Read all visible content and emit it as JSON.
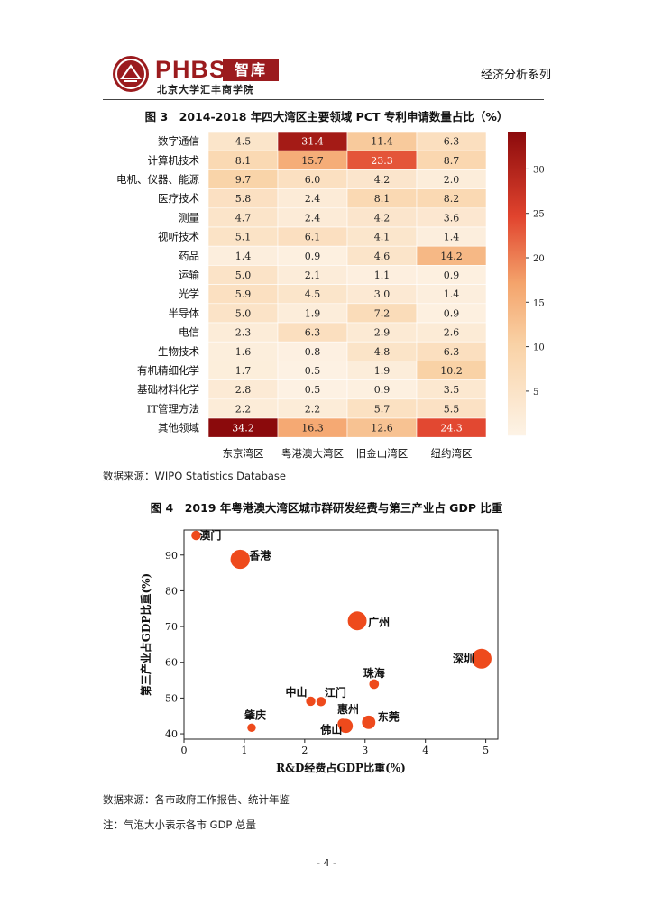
{
  "header": {
    "logo_main": "PHBS",
    "logo_badge": "智库",
    "logo_sub": "北京大学汇丰商学院",
    "series": "经济分析系列"
  },
  "figure3": {
    "title": "图 3　2014-2018 年四大湾区主要领域 PCT 专利申请数量占比（%）",
    "source": "数据来源：WIPO Statistics Database",
    "chart_data": {
      "type": "heatmap",
      "title": "2014-2018 年四大湾区主要领域 PCT 专利申请数量占比（%）",
      "rows": [
        "数字通信",
        "计算机技术",
        "电机、仪器、能源",
        "医疗技术",
        "测量",
        "视听技术",
        "药品",
        "运输",
        "光学",
        "半导体",
        "电信",
        "生物技术",
        "有机精细化学",
        "基础材料化学",
        "IT管理方法",
        "其他领域"
      ],
      "columns": [
        "东京湾区",
        "粤港澳大湾区",
        "旧金山湾区",
        "纽约湾区"
      ],
      "values": [
        [
          4.5,
          31.4,
          11.4,
          6.3
        ],
        [
          8.1,
          15.7,
          23.3,
          8.7
        ],
        [
          9.7,
          6.0,
          4.2,
          2.0
        ],
        [
          5.8,
          2.4,
          8.1,
          8.2
        ],
        [
          4.7,
          2.4,
          4.2,
          3.6
        ],
        [
          5.1,
          6.1,
          4.1,
          1.4
        ],
        [
          1.4,
          0.9,
          4.6,
          14.2
        ],
        [
          5.0,
          2.1,
          1.1,
          0.9
        ],
        [
          5.9,
          4.5,
          3.0,
          1.4
        ],
        [
          5.0,
          1.9,
          7.2,
          0.9
        ],
        [
          2.3,
          6.3,
          2.9,
          2.6
        ],
        [
          1.6,
          0.8,
          4.8,
          6.3
        ],
        [
          1.7,
          0.5,
          1.9,
          10.2
        ],
        [
          2.8,
          0.5,
          0.9,
          3.5
        ],
        [
          2.2,
          2.2,
          5.7,
          5.5
        ],
        [
          34.2,
          16.3,
          12.6,
          24.3
        ]
      ],
      "value_labels": [
        [
          "4.5",
          "31.4",
          "11.4",
          "6.3"
        ],
        [
          "8.1",
          "15.7",
          "23.3",
          "8.7"
        ],
        [
          "9.7",
          "6.0",
          "4.2",
          "2.0"
        ],
        [
          "5.8",
          "2.4",
          "8.1",
          "8.2"
        ],
        [
          "4.7",
          "2.4",
          "4.2",
          "3.6"
        ],
        [
          "5.1",
          "6.1",
          "4.1",
          "1.4"
        ],
        [
          "1.4",
          "0.9",
          "4.6",
          "14.2"
        ],
        [
          "5.0",
          "2.1",
          "1.1",
          "0.9"
        ],
        [
          "5.9",
          "4.5",
          "3.0",
          "1.4"
        ],
        [
          "5.0",
          "1.9",
          "7.2",
          "0.9"
        ],
        [
          "2.3",
          "6.3",
          "2.9",
          "2.6"
        ],
        [
          "1.6",
          "0.8",
          "4.8",
          "6.3"
        ],
        [
          "1.7",
          "0.5",
          "1.9",
          "10.2"
        ],
        [
          "2.8",
          "0.5",
          "0.9",
          "3.5"
        ],
        [
          "2.2",
          "2.2",
          "5.7",
          "5.5"
        ],
        [
          "34.2",
          "16.3",
          "12.6",
          "24.3"
        ]
      ],
      "colorbar": {
        "min": 0,
        "max": 34.2,
        "ticks": [
          5,
          10,
          15,
          20,
          25,
          30
        ],
        "tick_labels": [
          "5",
          "10",
          "15",
          "20",
          "25",
          "30"
        ]
      },
      "colors": {
        "low": "#fdf3e6",
        "mid": "#f4a46c",
        "mid2": "#e1442e",
        "high": "#8b0a0c"
      }
    }
  },
  "figure4": {
    "title": "图 4　2019 年粤港澳大湾区城市群研发经费与第三产业占 GDP 比重",
    "source": "数据来源：各市政府工作报告、统计年鉴",
    "note": "注：气泡大小表示各市 GDP 总量",
    "chart_data": {
      "type": "scatter",
      "title": "2019 年粤港澳大湾区城市群研发经费与第三产业占 GDP 比重",
      "xlabel": "R&D经费占GDP比重(%)",
      "ylabel": "第三产业占GDP比重(%)",
      "xlim": [
        0,
        5.2
      ],
      "ylim": [
        38.5,
        97
      ],
      "xticks": [
        0,
        1,
        2,
        3,
        4,
        5
      ],
      "xtick_labels": [
        "0",
        "1",
        "2",
        "3",
        "4",
        "5"
      ],
      "yticks": [
        40,
        50,
        60,
        70,
        80,
        90
      ],
      "ytick_labels": [
        "40",
        "50",
        "60",
        "70",
        "80",
        "90"
      ],
      "points": [
        {
          "name": "澳门",
          "x": 0.2,
          "y": 95.5,
          "gdp": 3.2
        },
        {
          "name": "香港",
          "x": 0.93,
          "y": 88.8,
          "gdp": 24.8
        },
        {
          "name": "广州",
          "x": 2.87,
          "y": 71.6,
          "gdp": 23.6
        },
        {
          "name": "深圳",
          "x": 4.93,
          "y": 61.0,
          "gdp": 26.9
        },
        {
          "name": "珠海",
          "x": 3.15,
          "y": 53.9,
          "gdp": 3.4
        },
        {
          "name": "中山",
          "x": 2.1,
          "y": 49.1,
          "gdp": 3.1
        },
        {
          "name": "江门",
          "x": 2.27,
          "y": 49.0,
          "gdp": 3.1
        },
        {
          "name": "惠州",
          "x": 2.63,
          "y": 42.8,
          "gdp": 4.2
        },
        {
          "name": "佛山",
          "x": 2.68,
          "y": 42.2,
          "gdp": 10.8
        },
        {
          "name": "东莞",
          "x": 3.06,
          "y": 43.2,
          "gdp": 9.5
        },
        {
          "name": "肇庆",
          "x": 1.12,
          "y": 41.7,
          "gdp": 2.2
        }
      ],
      "marker_color": "#ee4a1c"
    }
  },
  "page_number": "- 4 -"
}
